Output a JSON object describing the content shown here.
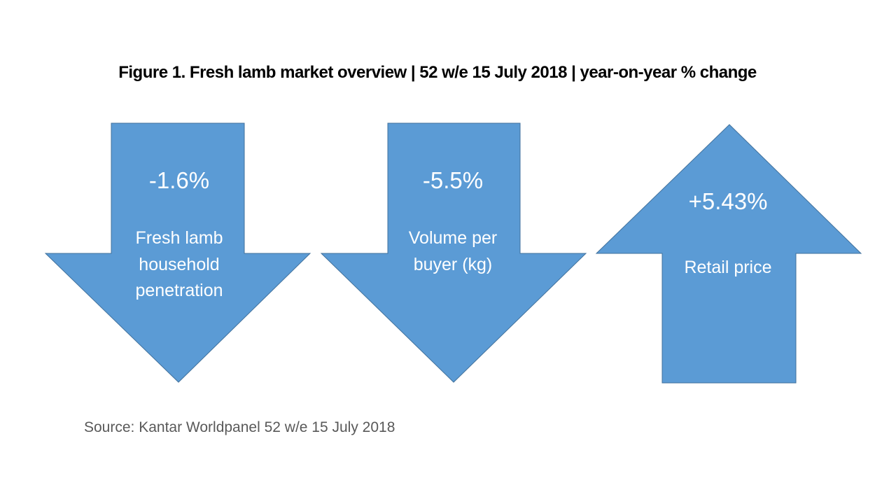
{
  "title": "Figure 1. Fresh lamb market overview | 52 w/e 15 July 2018 | year-on-year % change",
  "colors": {
    "arrow_fill": "#5B9BD5",
    "arrow_stroke": "#41719C",
    "text": "#FFFFFF"
  },
  "arrows": [
    {
      "direction": "down",
      "value": "-1.6%",
      "label_lines": [
        "Fresh lamb",
        "household",
        "penetration"
      ]
    },
    {
      "direction": "down",
      "value": "-5.5%",
      "label_lines": [
        "Volume per",
        "buyer (kg)"
      ]
    },
    {
      "direction": "up",
      "value": "+5.43%",
      "label_lines": [
        "Retail price"
      ]
    }
  ],
  "source": "Source: Kantar Worldpanel 52 w/e 15 July 2018"
}
